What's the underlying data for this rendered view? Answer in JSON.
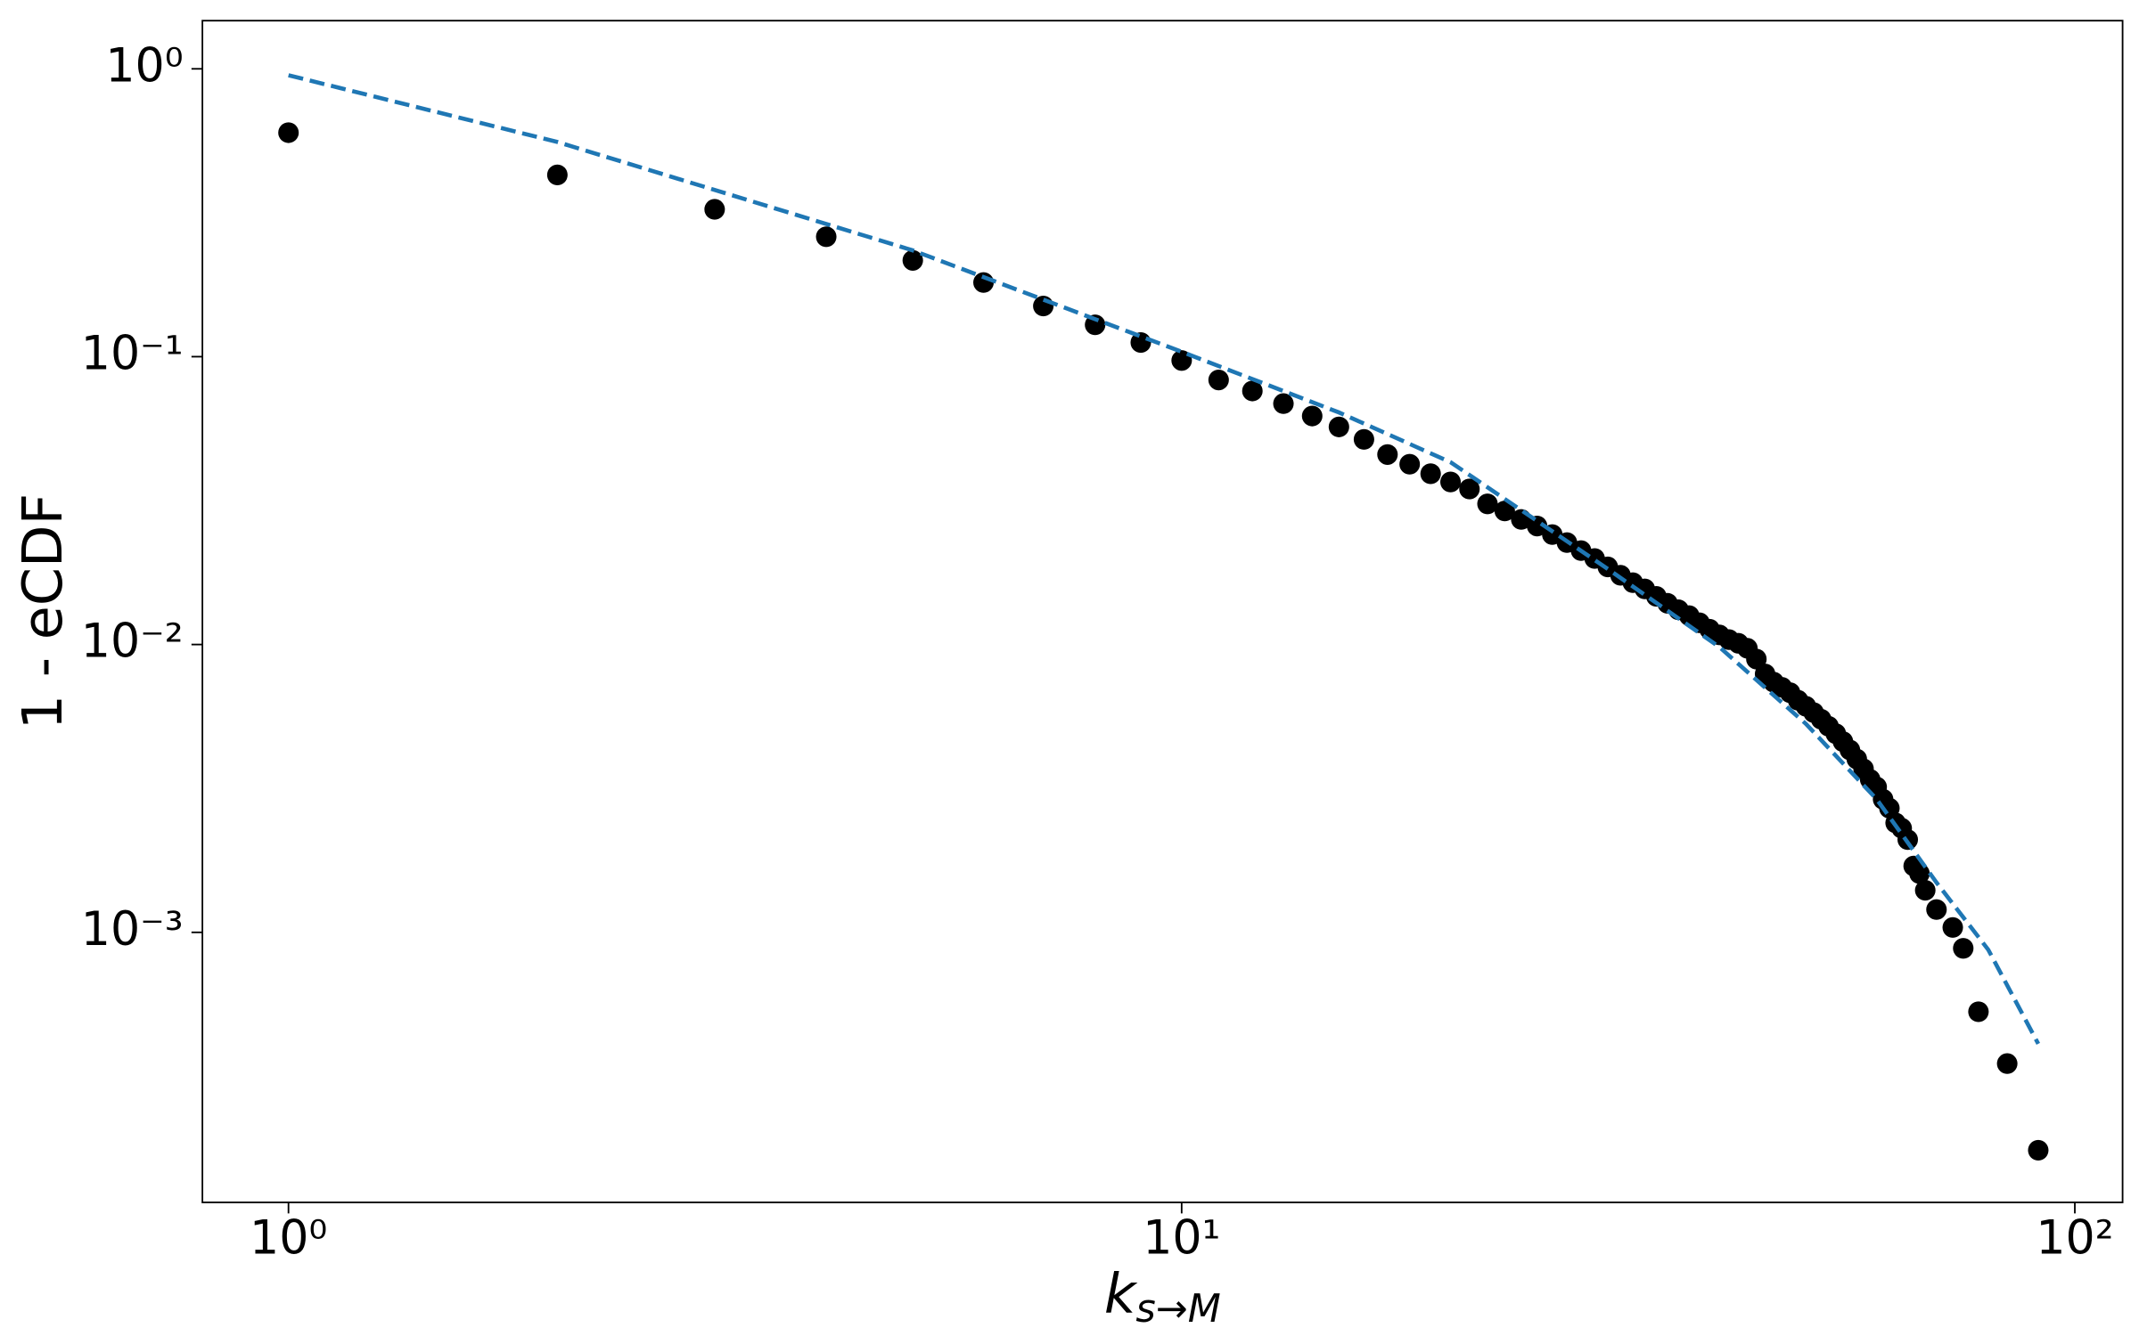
{
  "chart_data": {
    "type": "scatter",
    "xlabel": {
      "base": "k",
      "sub": "s→M"
    },
    "ylabel": "1 - eCDF",
    "xscale": "log",
    "yscale": "log",
    "xlim": [
      0.801,
      113.1
    ],
    "ylim": [
      0.0001153,
      1.47
    ],
    "xticks": [
      {
        "value": 1,
        "label": "10⁰"
      },
      {
        "value": 10,
        "label": "10¹"
      },
      {
        "value": 100,
        "label": "10²"
      }
    ],
    "yticks": [
      {
        "value": 1,
        "label": "10⁰"
      },
      {
        "value": 0.1,
        "label": "10⁻¹"
      },
      {
        "value": 0.01,
        "label": "10⁻²"
      },
      {
        "value": 0.001,
        "label": "10⁻³"
      }
    ],
    "grid": false,
    "series": [
      {
        "type": "scatter",
        "color": "#000000",
        "x": [
          1,
          2,
          3,
          4,
          5,
          6,
          7,
          8,
          9,
          10,
          11,
          12,
          13,
          14,
          15,
          16,
          17,
          18,
          19,
          20,
          21,
          22,
          23,
          24,
          25,
          26,
          27,
          28,
          29,
          30,
          31,
          32,
          33,
          34,
          35,
          36,
          37,
          38,
          39,
          40,
          41,
          42,
          43,
          44,
          45,
          46,
          47,
          48,
          49,
          50,
          51,
          52,
          53,
          54,
          55,
          56,
          57,
          58,
          59,
          60,
          61,
          62,
          63,
          64,
          65,
          66,
          67,
          68,
          70,
          73,
          75,
          78,
          84,
          91
        ],
        "values": [
          0.6,
          0.428,
          0.325,
          0.261,
          0.216,
          0.181,
          0.15,
          0.129,
          0.112,
          0.097,
          0.083,
          0.076,
          0.0687,
          0.0622,
          0.057,
          0.0516,
          0.0457,
          0.0423,
          0.0392,
          0.0367,
          0.0347,
          0.0308,
          0.0291,
          0.0272,
          0.0258,
          0.0241,
          0.0226,
          0.0212,
          0.0199,
          0.0186,
          0.0174,
          0.0164,
          0.0156,
          0.0147,
          0.0139,
          0.0132,
          0.0126,
          0.0119,
          0.0113,
          0.0108,
          0.0104,
          0.0101,
          0.0097,
          0.0089,
          0.0079,
          0.0074,
          0.0071,
          0.0068,
          0.0064,
          0.0061,
          0.0058,
          0.0055,
          0.0052,
          0.0049,
          0.0046,
          0.0043,
          0.004,
          0.0037,
          0.0034,
          0.0032,
          0.0029,
          0.0027,
          0.0024,
          0.0023,
          0.0021,
          0.0017,
          0.0016,
          0.0014,
          0.0012,
          0.00104,
          0.00088,
          0.00053,
          0.00035,
          0.000175
        ]
      },
      {
        "type": "line",
        "color": "#1f77b4",
        "dash": true,
        "x": [
          1,
          2,
          5,
          10,
          15,
          20,
          30,
          40,
          50,
          60,
          70,
          80,
          91
        ],
        "values": [
          0.95,
          0.557,
          0.234,
          0.104,
          0.064,
          0.043,
          0.0183,
          0.0098,
          0.0053,
          0.0029,
          0.00149,
          0.00087,
          0.00041
        ]
      }
    ]
  }
}
